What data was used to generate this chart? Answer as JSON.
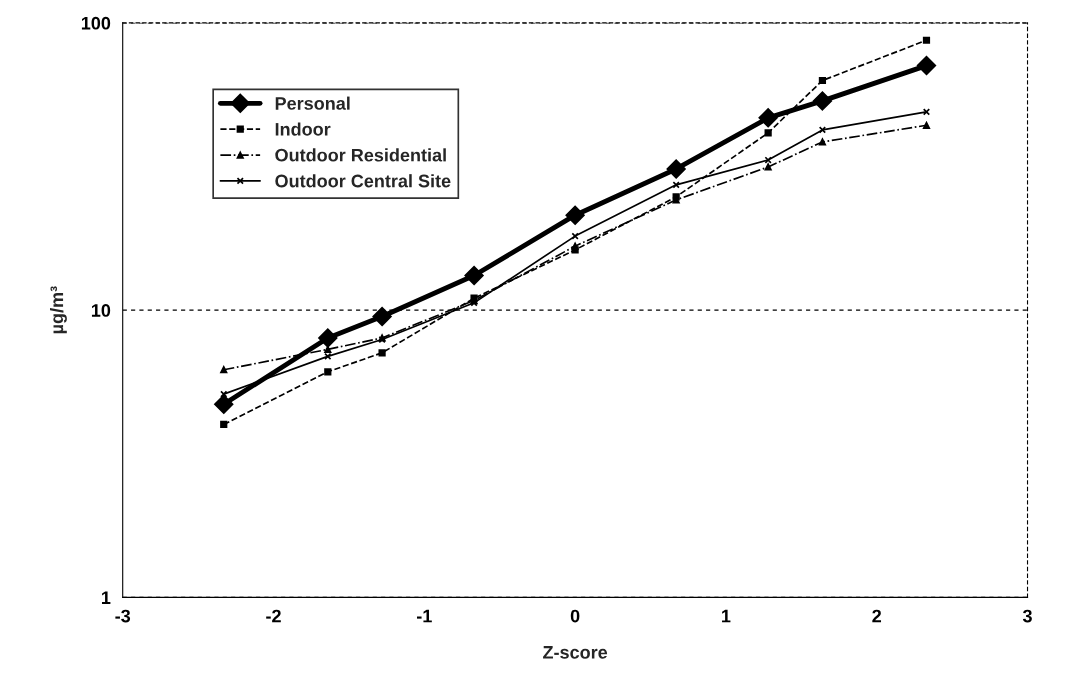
{
  "chart_data": {
    "type": "line",
    "xlabel": "Z-score",
    "ylabel": "µg/m³",
    "x": [
      -2.33,
      -1.64,
      -1.28,
      -0.67,
      0,
      0.67,
      1.28,
      1.64,
      2.33
    ],
    "xlim": [
      -3,
      3
    ],
    "xticks": [
      -3,
      -2,
      -1,
      0,
      1,
      2,
      3
    ],
    "ylim": [
      1,
      100
    ],
    "yticks": [
      1,
      10,
      100
    ],
    "log": "y",
    "grid": "y",
    "legend": "top left",
    "series": [
      {
        "name": "Personal",
        "color": "#000000",
        "marker": "diamond",
        "line_style": "solid",
        "values": [
          4.7,
          8.0,
          9.5,
          13.2,
          21.4,
          31,
          46.7,
          53.5,
          71
        ]
      },
      {
        "name": "Indoor",
        "color": "#000000",
        "marker": "square",
        "line_style": "dashed",
        "values": [
          4.0,
          6.1,
          7.1,
          11.0,
          16.2,
          24.8,
          41.4,
          63,
          87
        ]
      },
      {
        "name": "Outdoor Residential",
        "color": "#000000",
        "marker": "triangle",
        "line_style": "dotted",
        "values": [
          6.2,
          7.3,
          8.0,
          10.8,
          16.7,
          24.2,
          31.5,
          38.5,
          44
        ]
      },
      {
        "name": "Outdoor Central Site",
        "color": "#000000",
        "marker": "cross",
        "line_style": "solid",
        "values": [
          5.1,
          6.9,
          7.9,
          10.6,
          18.1,
          27.3,
          33.3,
          42.4,
          49
        ]
      }
    ]
  }
}
